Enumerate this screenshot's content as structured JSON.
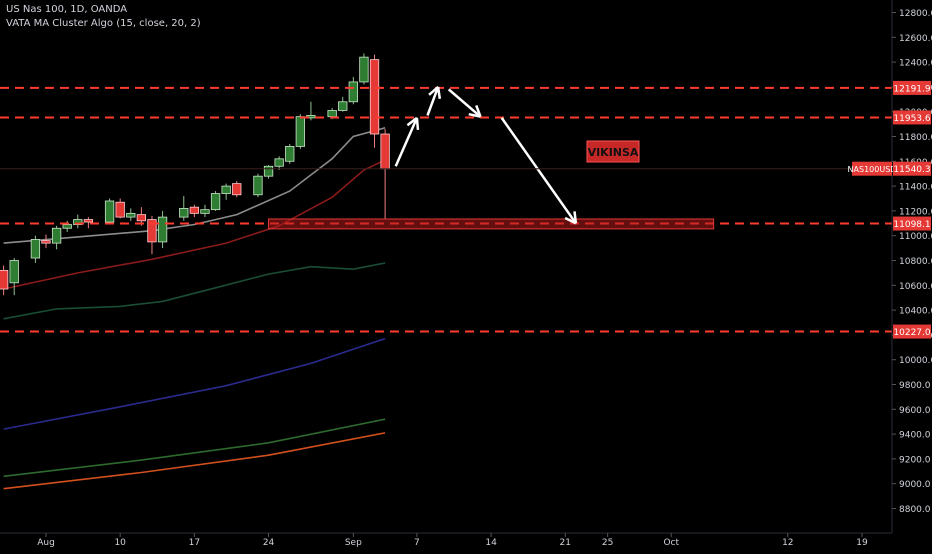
{
  "header": {
    "symbol_line": "US Nas 100, 1D, OANDA",
    "indicator_line": "VATA MA Cluster Algo (15, close, 20, 2)"
  },
  "watermark": "VIKINSA",
  "colors": {
    "background": "#000000",
    "candle_up": "#2e7d32",
    "candle_down": "#e53935",
    "level_line": "#ff3b30",
    "price_label_bg": "#e53935",
    "axis_text": "#d1d4dc",
    "ma_gray": "#8c8c8c",
    "ma_darkred": "#8b1a1a",
    "ma_darkgreen": "#1b4d35",
    "ma_navy": "#2a2a8c",
    "ma_green": "#2d6a2d",
    "ma_orange": "#d2501e",
    "arrows": "#ffffff"
  },
  "chart_data": {
    "type": "candlestick",
    "y_axis": {
      "min": 8700,
      "max": 12950,
      "ticks": [
        12800,
        12600,
        12400,
        12200,
        12000,
        11800,
        11600,
        11400,
        11200,
        11000,
        10800,
        10600,
        10400,
        10200,
        10000,
        9800,
        9600,
        9400,
        9200,
        9000,
        8800
      ],
      "tick_labels": [
        "12800.0",
        "12600.0",
        "12400.0",
        "12200.0",
        "12000.0",
        "11800.0",
        "11600.0",
        "11400.0",
        "11200.0",
        "11000.0",
        "10800.0",
        "10600.0",
        "10400.0",
        "10200.0",
        "10000.0",
        "9800.0",
        "9600.0",
        "9400.0",
        "9200.0",
        "9000.0",
        "8800.0"
      ]
    },
    "x_axis": {
      "start": "2020-07-30",
      "end": "2020-10-26",
      "ticks": [
        {
          "date": "2020-08-03",
          "label": "Aug"
        },
        {
          "date": "2020-08-10",
          "label": "10"
        },
        {
          "date": "2020-08-17",
          "label": "17"
        },
        {
          "date": "2020-08-24",
          "label": "24"
        },
        {
          "date": "2020-09-01",
          "label": "Sep"
        },
        {
          "date": "2020-09-07",
          "label": "7"
        },
        {
          "date": "2020-09-14",
          "label": "14"
        },
        {
          "date": "2020-09-21",
          "label": "21"
        },
        {
          "date": "2020-09-25",
          "label": "25"
        },
        {
          "date": "2020-10-01",
          "label": "Oct"
        },
        {
          "date": "2020-10-12",
          "label": "12"
        },
        {
          "date": "2020-10-19",
          "label": "19"
        }
      ]
    },
    "candles": [
      {
        "date": "2020-07-30",
        "o": 10720,
        "h": 10760,
        "l": 10520,
        "c": 10570
      },
      {
        "date": "2020-07-31",
        "o": 10620,
        "h": 10820,
        "l": 10520,
        "c": 10800
      },
      {
        "date": "2020-08-02",
        "o": 10820,
        "h": 11000,
        "l": 10780,
        "c": 10970
      },
      {
        "date": "2020-08-03",
        "o": 10960,
        "h": 11010,
        "l": 10900,
        "c": 10940
      },
      {
        "date": "2020-08-04",
        "o": 10940,
        "h": 11080,
        "l": 10890,
        "c": 11060
      },
      {
        "date": "2020-08-05",
        "o": 11060,
        "h": 11120,
        "l": 11030,
        "c": 11090
      },
      {
        "date": "2020-08-06",
        "o": 11090,
        "h": 11170,
        "l": 11060,
        "c": 11130
      },
      {
        "date": "2020-08-07",
        "o": 11130,
        "h": 11150,
        "l": 11060,
        "c": 11110
      },
      {
        "date": "2020-08-09",
        "o": 11110,
        "h": 11300,
        "l": 11090,
        "c": 11280
      },
      {
        "date": "2020-08-10",
        "o": 11270,
        "h": 11300,
        "l": 11140,
        "c": 11150
      },
      {
        "date": "2020-08-11",
        "o": 11150,
        "h": 11220,
        "l": 11120,
        "c": 11180
      },
      {
        "date": "2020-08-12",
        "o": 11170,
        "h": 11230,
        "l": 11080,
        "c": 11120
      },
      {
        "date": "2020-08-13",
        "o": 11130,
        "h": 11160,
        "l": 10850,
        "c": 10950
      },
      {
        "date": "2020-08-14",
        "o": 10950,
        "h": 11200,
        "l": 10900,
        "c": 11150
      },
      {
        "date": "2020-08-16",
        "o": 11150,
        "h": 11320,
        "l": 11120,
        "c": 11220
      },
      {
        "date": "2020-08-17",
        "o": 11230,
        "h": 11250,
        "l": 11150,
        "c": 11180
      },
      {
        "date": "2020-08-18",
        "o": 11180,
        "h": 11250,
        "l": 11150,
        "c": 11210
      },
      {
        "date": "2020-08-19",
        "o": 11210,
        "h": 11360,
        "l": 11200,
        "c": 11340
      },
      {
        "date": "2020-08-20",
        "o": 11340,
        "h": 11420,
        "l": 11290,
        "c": 11400
      },
      {
        "date": "2020-08-21",
        "o": 11420,
        "h": 11440,
        "l": 11310,
        "c": 11330
      },
      {
        "date": "2020-08-23",
        "o": 11330,
        "h": 11500,
        "l": 11310,
        "c": 11480
      },
      {
        "date": "2020-08-24",
        "o": 11480,
        "h": 11570,
        "l": 11460,
        "c": 11560
      },
      {
        "date": "2020-08-25",
        "o": 11560,
        "h": 11640,
        "l": 11530,
        "c": 11620
      },
      {
        "date": "2020-08-26",
        "o": 11600,
        "h": 11740,
        "l": 11580,
        "c": 11720
      },
      {
        "date": "2020-08-27",
        "o": 11720,
        "h": 11980,
        "l": 11700,
        "c": 11960
      },
      {
        "date": "2020-08-28",
        "o": 11950,
        "h": 12080,
        "l": 11930,
        "c": 11970
      },
      {
        "date": "2020-08-30",
        "o": 11960,
        "h": 12030,
        "l": 11940,
        "c": 12010
      },
      {
        "date": "2020-08-31",
        "o": 12010,
        "h": 12120,
        "l": 12000,
        "c": 12080
      },
      {
        "date": "2020-09-01",
        "o": 12080,
        "h": 12280,
        "l": 12060,
        "c": 12240
      },
      {
        "date": "2020-09-02",
        "o": 12240,
        "h": 12470,
        "l": 12220,
        "c": 12440
      },
      {
        "date": "2020-09-03",
        "o": 12420,
        "h": 12460,
        "l": 11710,
        "c": 11820
      },
      {
        "date": "2020-09-04",
        "o": 11820,
        "h": 11860,
        "l": 11130,
        "c": 11540
      }
    ],
    "levels": [
      {
        "name": "12191.9",
        "value": 12191.9
      },
      {
        "name": "11953.6",
        "value": 11953.6
      },
      {
        "name": "11098.1",
        "value": 11098.1
      },
      {
        "name": "10227.0",
        "value": 10227.0
      }
    ],
    "current_price": {
      "symbol": "NAS100USD",
      "value": 11540.3
    },
    "zone": {
      "date_start": "2020-08-24",
      "date_end": "2020-10-05",
      "top": 11135,
      "bottom": 11055
    },
    "moving_averages": [
      {
        "color": "#8c8c8c",
        "points": [
          [
            "2020-07-30",
            10940
          ],
          [
            "2020-08-06",
            10990
          ],
          [
            "2020-08-13",
            11040
          ],
          [
            "2020-08-17",
            11090
          ],
          [
            "2020-08-21",
            11170
          ],
          [
            "2020-08-26",
            11360
          ],
          [
            "2020-08-30",
            11620
          ],
          [
            "2020-09-01",
            11800
          ],
          [
            "2020-09-04",
            11870
          ]
        ]
      },
      {
        "color": "#8b1a1a",
        "points": [
          [
            "2020-07-30",
            10570
          ],
          [
            "2020-08-06",
            10700
          ],
          [
            "2020-08-13",
            10810
          ],
          [
            "2020-08-20",
            10940
          ],
          [
            "2020-08-25",
            11080
          ],
          [
            "2020-08-30",
            11310
          ],
          [
            "2020-09-02",
            11530
          ],
          [
            "2020-09-04",
            11610
          ]
        ]
      },
      {
        "color": "#1b4d35",
        "points": [
          [
            "2020-07-30",
            10330
          ],
          [
            "2020-08-04",
            10410
          ],
          [
            "2020-08-10",
            10430
          ],
          [
            "2020-08-14",
            10470
          ],
          [
            "2020-08-19",
            10580
          ],
          [
            "2020-08-24",
            10690
          ],
          [
            "2020-08-28",
            10750
          ],
          [
            "2020-09-01",
            10730
          ],
          [
            "2020-09-04",
            10780
          ]
        ]
      },
      {
        "color": "#2a2a8c",
        "points": [
          [
            "2020-07-30",
            9440
          ],
          [
            "2020-08-10",
            9620
          ],
          [
            "2020-08-20",
            9790
          ],
          [
            "2020-08-28",
            9970
          ],
          [
            "2020-09-04",
            10170
          ]
        ]
      },
      {
        "color": "#2d6a2d",
        "points": [
          [
            "2020-07-30",
            9060
          ],
          [
            "2020-08-12",
            9190
          ],
          [
            "2020-08-24",
            9330
          ],
          [
            "2020-09-04",
            9520
          ]
        ]
      },
      {
        "color": "#d2501e",
        "points": [
          [
            "2020-07-30",
            8960
          ],
          [
            "2020-08-12",
            9090
          ],
          [
            "2020-08-24",
            9230
          ],
          [
            "2020-09-04",
            9410
          ]
        ]
      }
    ],
    "projection_arrows": [
      {
        "from": [
          "2020-09-05",
          11560
        ],
        "to": [
          "2020-09-07",
          11950
        ]
      },
      {
        "from": [
          "2020-09-08",
          11970
        ],
        "to": [
          "2020-09-09",
          12200
        ]
      },
      {
        "from": [
          "2020-09-10",
          12180
        ],
        "to": [
          "2020-09-13",
          11960
        ]
      },
      {
        "from": [
          "2020-09-15",
          11950
        ],
        "to": [
          "2020-09-22",
          11100
        ]
      }
    ]
  }
}
